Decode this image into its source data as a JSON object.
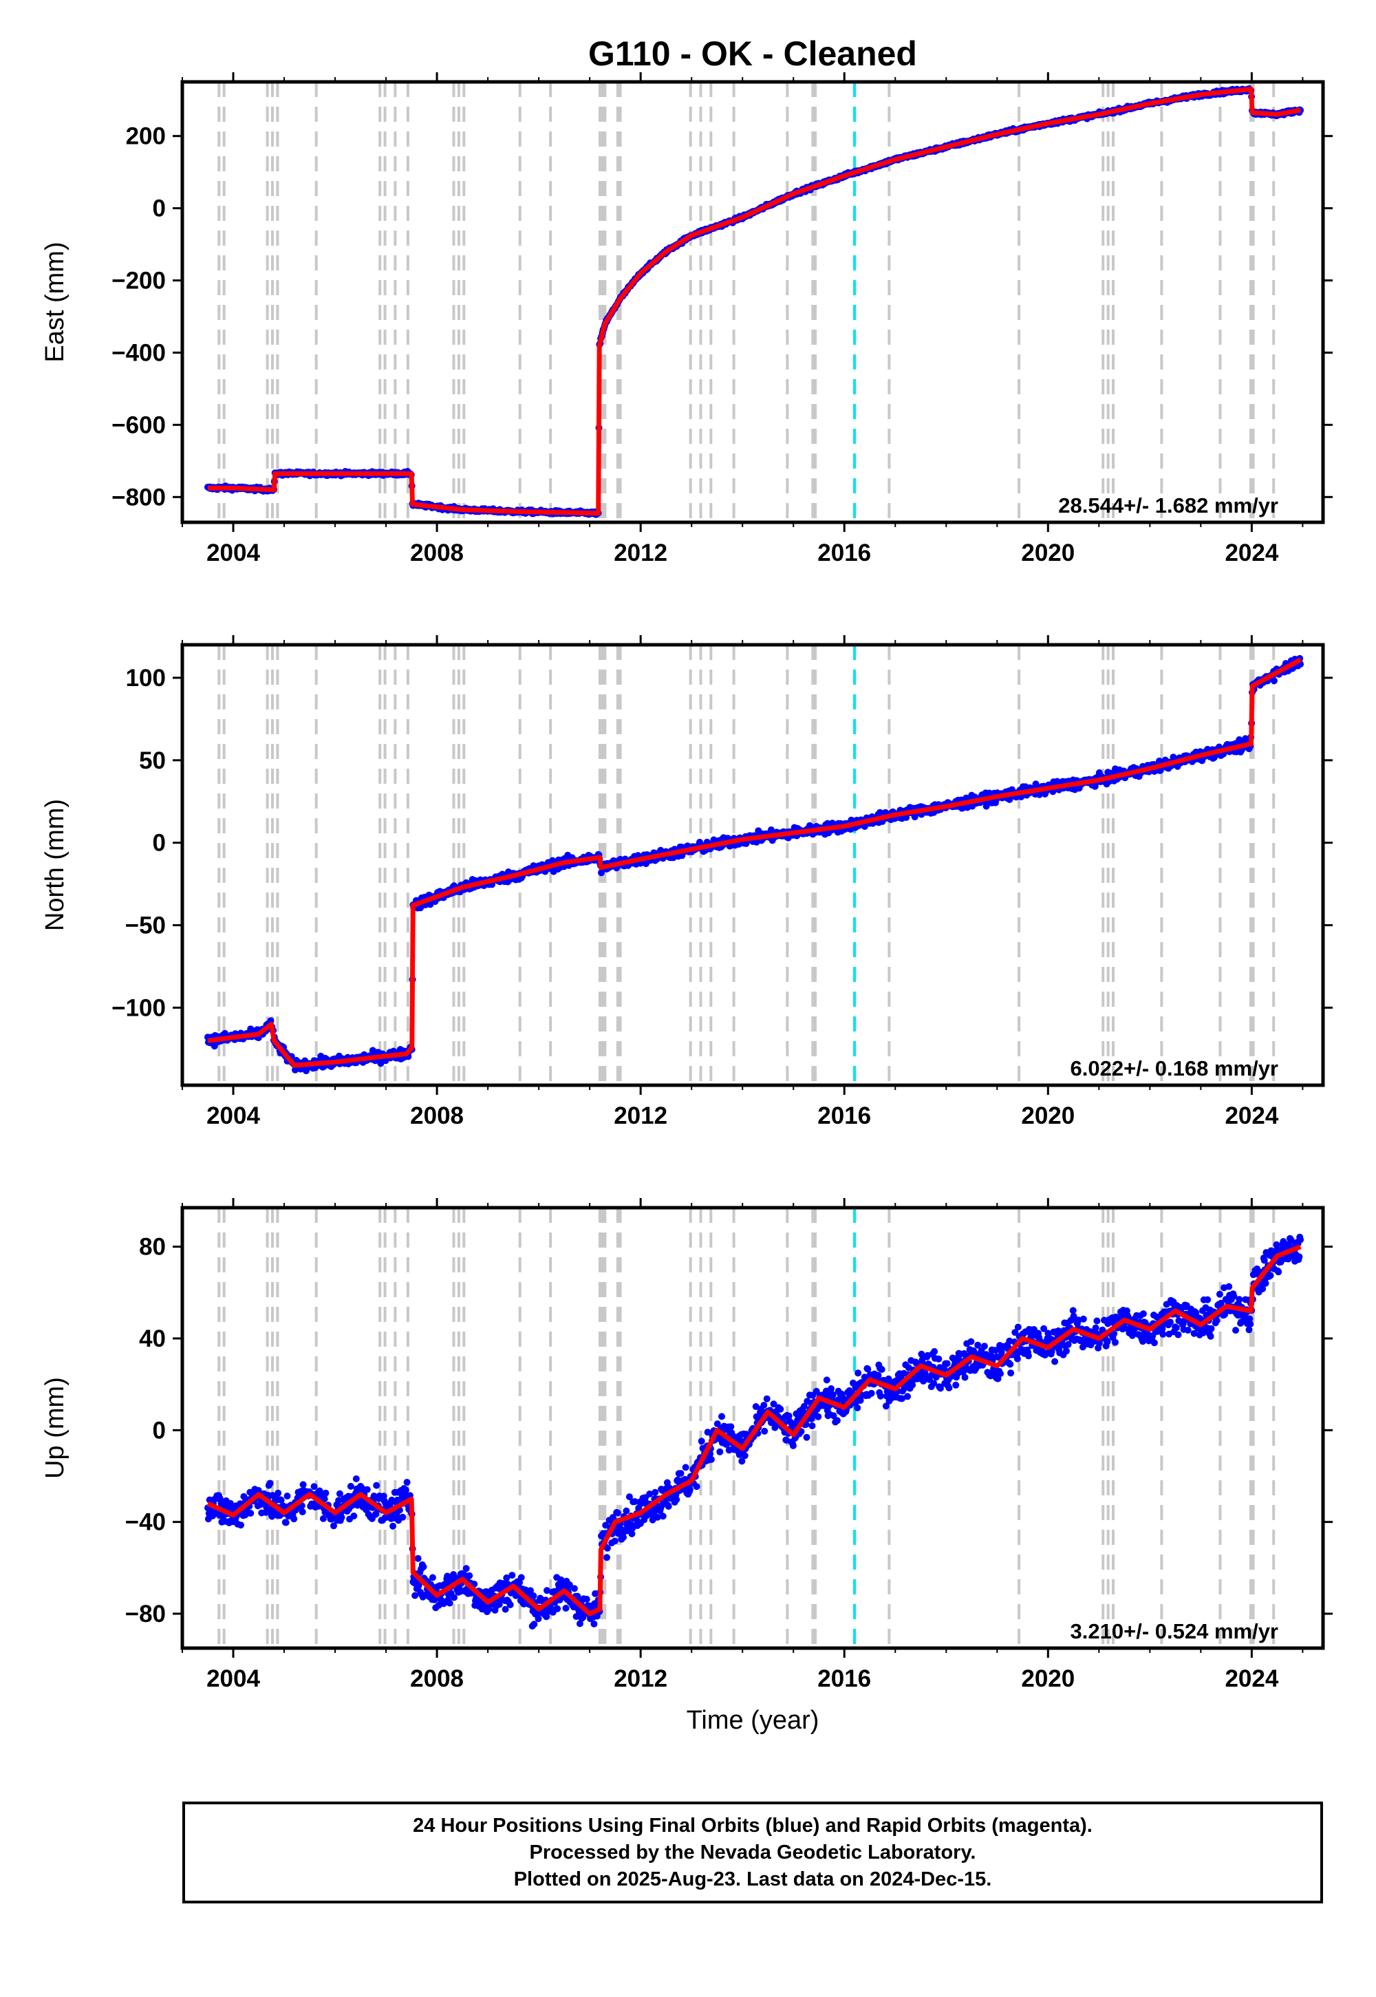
{
  "figure": {
    "title": "G110  - OK - Cleaned",
    "xlabel": "Time (year)"
  },
  "footer": {
    "line1": "24 Hour Positions Using Final Orbits (blue) and Rapid Orbits (magenta).",
    "line2": "Processed by the Nevada Geodetic Laboratory.",
    "line3": "Plotted on 2025-Aug-23. Last data on 2024-Dec-15."
  },
  "colors": {
    "data_points": "#0000ff",
    "model_line": "#ff0000",
    "equipment_change_lines": "#c8c8c8",
    "earthquake_line": "#00e5ee"
  },
  "chart_data": [
    {
      "type": "line",
      "component": "east",
      "ylabel": "East (mm)",
      "xlim": [
        2003.0,
        2025.4
      ],
      "ylim": [
        -870,
        350
      ],
      "xticks": [
        2004,
        2008,
        2012,
        2016,
        2020,
        2024
      ],
      "yticks": [
        -800,
        -600,
        -400,
        -200,
        0,
        200
      ],
      "rate_label": "28.544+/- 1.682 mm/yr",
      "model": {
        "x": [
          2003.5,
          2004.0,
          2004.8,
          2004.82,
          2005.5,
          2006.5,
          2007.5,
          2007.52,
          2008.5,
          2009.5,
          2010.5,
          2011.17,
          2011.19,
          2011.3,
          2011.6,
          2012.0,
          2012.5,
          2013.0,
          2014.0,
          2015.0,
          2016.0,
          2017.0,
          2018.0,
          2019.0,
          2020.0,
          2021.0,
          2022.0,
          2023.0,
          2023.99,
          2024.01,
          2024.5,
          2024.96
        ],
        "y": [
          -775,
          -775,
          -780,
          -735,
          -735,
          -735,
          -735,
          -820,
          -835,
          -840,
          -843,
          -845,
          -380,
          -320,
          -250,
          -180,
          -120,
          -75,
          -25,
          40,
          90,
          135,
          170,
          205,
          235,
          260,
          290,
          315,
          330,
          265,
          260,
          272
        ]
      },
      "equipment_changes": [
        2003.72,
        2003.82,
        2004.67,
        2004.77,
        2004.87,
        2005.63,
        2006.88,
        2006.98,
        2007.18,
        2007.43,
        2008.33,
        2008.43,
        2008.53,
        2009.63,
        2010.23,
        2011.2,
        2011.25,
        2011.3,
        2011.55,
        2011.6,
        2012.98,
        2013.18,
        2013.38,
        2013.83,
        2014.88,
        2015.38,
        2015.43,
        2016.88,
        2019.43,
        2021.08,
        2021.18,
        2021.28,
        2022.23,
        2023.38,
        2023.98,
        2024.03,
        2024.43
      ],
      "earthquakes": [
        2016.2
      ]
    },
    {
      "type": "line",
      "component": "north",
      "ylabel": "North (mm)",
      "xlim": [
        2003.0,
        2025.4
      ],
      "ylim": [
        -147,
        120
      ],
      "xticks": [
        2004,
        2008,
        2012,
        2016,
        2020,
        2024
      ],
      "yticks": [
        -100,
        -50,
        0,
        50,
        100
      ],
      "rate_label": "6.022+/- 0.168 mm/yr",
      "model": {
        "x": [
          2003.5,
          2004.0,
          2004.5,
          2004.75,
          2004.8,
          2005.2,
          2006.0,
          2006.8,
          2007.4,
          2007.51,
          2007.53,
          2008.5,
          2009.5,
          2010.5,
          2011.2,
          2011.22,
          2012.0,
          2013.0,
          2014.0,
          2015.0,
          2016.0,
          2017.0,
          2018.0,
          2019.0,
          2020.0,
          2021.0,
          2022.0,
          2023.0,
          2023.99,
          2024.01,
          2024.96
        ],
        "y": [
          -120,
          -118,
          -116,
          -110,
          -120,
          -135,
          -133,
          -130,
          -128,
          -124,
          -38,
          -27,
          -20,
          -12,
          -9,
          -15,
          -10,
          -4,
          2,
          6,
          10,
          17,
          22,
          28,
          33,
          38,
          45,
          53,
          60,
          95,
          111
        ]
      },
      "equipment_changes": [
        2003.72,
        2003.82,
        2004.67,
        2004.77,
        2004.87,
        2005.63,
        2006.88,
        2006.98,
        2007.18,
        2007.43,
        2008.33,
        2008.43,
        2008.53,
        2009.63,
        2010.23,
        2011.2,
        2011.25,
        2011.3,
        2011.55,
        2011.6,
        2012.98,
        2013.18,
        2013.38,
        2013.83,
        2014.88,
        2015.38,
        2015.43,
        2016.88,
        2019.43,
        2021.08,
        2021.18,
        2021.28,
        2022.23,
        2023.38,
        2023.98,
        2024.03,
        2024.43
      ],
      "earthquakes": [
        2016.2
      ]
    },
    {
      "type": "line",
      "component": "up",
      "ylabel": "Up (mm)",
      "xlim": [
        2003.0,
        2025.4
      ],
      "ylim": [
        -95,
        97
      ],
      "xticks": [
        2004,
        2008,
        2012,
        2016,
        2020,
        2024
      ],
      "yticks": [
        -80,
        -40,
        0,
        40,
        80
      ],
      "rate_label": "3.210+/- 0.524 mm/yr",
      "model": {
        "x": [
          2003.5,
          2004.0,
          2004.5,
          2005.0,
          2005.5,
          2006.0,
          2006.5,
          2007.0,
          2007.5,
          2007.51,
          2007.53,
          2008.0,
          2008.5,
          2009.0,
          2009.5,
          2010.0,
          2010.5,
          2011.0,
          2011.2,
          2011.22,
          2011.5,
          2012.0,
          2012.5,
          2013.0,
          2013.5,
          2014.0,
          2014.5,
          2015.0,
          2015.5,
          2016.0,
          2016.5,
          2017.0,
          2017.5,
          2018.0,
          2018.5,
          2019.0,
          2019.5,
          2020.0,
          2020.5,
          2021.0,
          2021.5,
          2022.0,
          2022.5,
          2023.0,
          2023.5,
          2023.99,
          2024.01,
          2024.5,
          2024.96
        ],
        "y": [
          -32,
          -37,
          -28,
          -36,
          -28,
          -36,
          -28,
          -36,
          -30,
          -38,
          -62,
          -72,
          -65,
          -75,
          -68,
          -78,
          -70,
          -80,
          -78,
          -52,
          -40,
          -36,
          -28,
          -22,
          0,
          -8,
          8,
          -2,
          14,
          10,
          22,
          18,
          28,
          24,
          32,
          28,
          40,
          36,
          44,
          40,
          48,
          44,
          52,
          46,
          54,
          52,
          62,
          76,
          80
        ]
      },
      "equipment_changes": [
        2003.72,
        2003.82,
        2004.67,
        2004.77,
        2004.87,
        2005.63,
        2006.88,
        2006.98,
        2007.18,
        2007.43,
        2008.33,
        2008.43,
        2008.53,
        2009.63,
        2010.23,
        2011.2,
        2011.25,
        2011.3,
        2011.55,
        2011.6,
        2012.98,
        2013.18,
        2013.38,
        2013.83,
        2014.88,
        2015.38,
        2015.43,
        2016.88,
        2019.43,
        2021.08,
        2021.18,
        2021.28,
        2022.23,
        2023.38,
        2023.98,
        2024.03,
        2024.43
      ],
      "earthquakes": [
        2016.2
      ]
    }
  ]
}
